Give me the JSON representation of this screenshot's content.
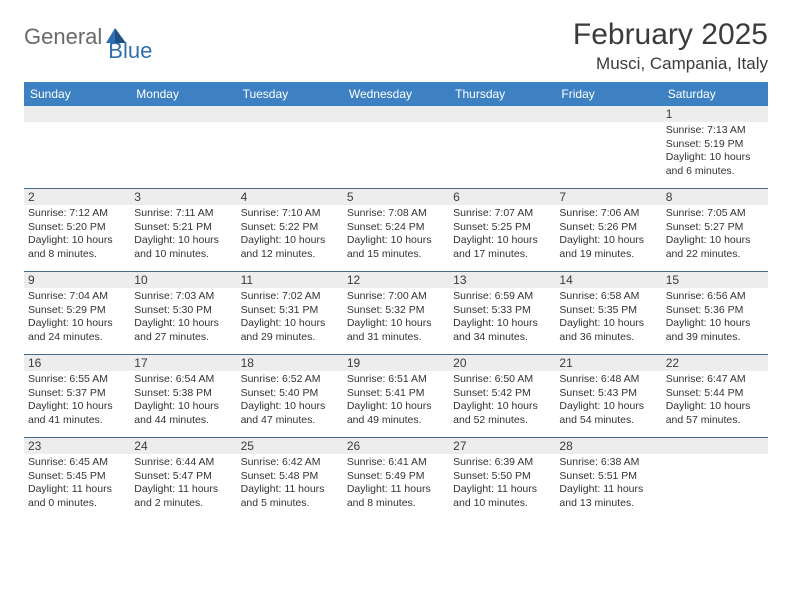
{
  "logo": {
    "part1": "General",
    "part2": "Blue"
  },
  "title": "February 2025",
  "location": "Musci, Campania, Italy",
  "header_bg": "#3d81c3",
  "rule_color": "#4a6a8a",
  "shade_bg": "#ededed",
  "text_color": "#333333",
  "weekdays": [
    "Sunday",
    "Monday",
    "Tuesday",
    "Wednesday",
    "Thursday",
    "Friday",
    "Saturday"
  ],
  "weeks": [
    {
      "nums": [
        "",
        "",
        "",
        "",
        "",
        "",
        "1"
      ],
      "cells": [
        null,
        null,
        null,
        null,
        null,
        null,
        {
          "sunrise": "Sunrise: 7:13 AM",
          "sunset": "Sunset: 5:19 PM",
          "day1": "Daylight: 10 hours",
          "day2": "and 6 minutes."
        }
      ]
    },
    {
      "nums": [
        "2",
        "3",
        "4",
        "5",
        "6",
        "7",
        "8"
      ],
      "cells": [
        {
          "sunrise": "Sunrise: 7:12 AM",
          "sunset": "Sunset: 5:20 PM",
          "day1": "Daylight: 10 hours",
          "day2": "and 8 minutes."
        },
        {
          "sunrise": "Sunrise: 7:11 AM",
          "sunset": "Sunset: 5:21 PM",
          "day1": "Daylight: 10 hours",
          "day2": "and 10 minutes."
        },
        {
          "sunrise": "Sunrise: 7:10 AM",
          "sunset": "Sunset: 5:22 PM",
          "day1": "Daylight: 10 hours",
          "day2": "and 12 minutes."
        },
        {
          "sunrise": "Sunrise: 7:08 AM",
          "sunset": "Sunset: 5:24 PM",
          "day1": "Daylight: 10 hours",
          "day2": "and 15 minutes."
        },
        {
          "sunrise": "Sunrise: 7:07 AM",
          "sunset": "Sunset: 5:25 PM",
          "day1": "Daylight: 10 hours",
          "day2": "and 17 minutes."
        },
        {
          "sunrise": "Sunrise: 7:06 AM",
          "sunset": "Sunset: 5:26 PM",
          "day1": "Daylight: 10 hours",
          "day2": "and 19 minutes."
        },
        {
          "sunrise": "Sunrise: 7:05 AM",
          "sunset": "Sunset: 5:27 PM",
          "day1": "Daylight: 10 hours",
          "day2": "and 22 minutes."
        }
      ]
    },
    {
      "nums": [
        "9",
        "10",
        "11",
        "12",
        "13",
        "14",
        "15"
      ],
      "cells": [
        {
          "sunrise": "Sunrise: 7:04 AM",
          "sunset": "Sunset: 5:29 PM",
          "day1": "Daylight: 10 hours",
          "day2": "and 24 minutes."
        },
        {
          "sunrise": "Sunrise: 7:03 AM",
          "sunset": "Sunset: 5:30 PM",
          "day1": "Daylight: 10 hours",
          "day2": "and 27 minutes."
        },
        {
          "sunrise": "Sunrise: 7:02 AM",
          "sunset": "Sunset: 5:31 PM",
          "day1": "Daylight: 10 hours",
          "day2": "and 29 minutes."
        },
        {
          "sunrise": "Sunrise: 7:00 AM",
          "sunset": "Sunset: 5:32 PM",
          "day1": "Daylight: 10 hours",
          "day2": "and 31 minutes."
        },
        {
          "sunrise": "Sunrise: 6:59 AM",
          "sunset": "Sunset: 5:33 PM",
          "day1": "Daylight: 10 hours",
          "day2": "and 34 minutes."
        },
        {
          "sunrise": "Sunrise: 6:58 AM",
          "sunset": "Sunset: 5:35 PM",
          "day1": "Daylight: 10 hours",
          "day2": "and 36 minutes."
        },
        {
          "sunrise": "Sunrise: 6:56 AM",
          "sunset": "Sunset: 5:36 PM",
          "day1": "Daylight: 10 hours",
          "day2": "and 39 minutes."
        }
      ]
    },
    {
      "nums": [
        "16",
        "17",
        "18",
        "19",
        "20",
        "21",
        "22"
      ],
      "cells": [
        {
          "sunrise": "Sunrise: 6:55 AM",
          "sunset": "Sunset: 5:37 PM",
          "day1": "Daylight: 10 hours",
          "day2": "and 41 minutes."
        },
        {
          "sunrise": "Sunrise: 6:54 AM",
          "sunset": "Sunset: 5:38 PM",
          "day1": "Daylight: 10 hours",
          "day2": "and 44 minutes."
        },
        {
          "sunrise": "Sunrise: 6:52 AM",
          "sunset": "Sunset: 5:40 PM",
          "day1": "Daylight: 10 hours",
          "day2": "and 47 minutes."
        },
        {
          "sunrise": "Sunrise: 6:51 AM",
          "sunset": "Sunset: 5:41 PM",
          "day1": "Daylight: 10 hours",
          "day2": "and 49 minutes."
        },
        {
          "sunrise": "Sunrise: 6:50 AM",
          "sunset": "Sunset: 5:42 PM",
          "day1": "Daylight: 10 hours",
          "day2": "and 52 minutes."
        },
        {
          "sunrise": "Sunrise: 6:48 AM",
          "sunset": "Sunset: 5:43 PM",
          "day1": "Daylight: 10 hours",
          "day2": "and 54 minutes."
        },
        {
          "sunrise": "Sunrise: 6:47 AM",
          "sunset": "Sunset: 5:44 PM",
          "day1": "Daylight: 10 hours",
          "day2": "and 57 minutes."
        }
      ]
    },
    {
      "nums": [
        "23",
        "24",
        "25",
        "26",
        "27",
        "28",
        ""
      ],
      "cells": [
        {
          "sunrise": "Sunrise: 6:45 AM",
          "sunset": "Sunset: 5:45 PM",
          "day1": "Daylight: 11 hours",
          "day2": "and 0 minutes."
        },
        {
          "sunrise": "Sunrise: 6:44 AM",
          "sunset": "Sunset: 5:47 PM",
          "day1": "Daylight: 11 hours",
          "day2": "and 2 minutes."
        },
        {
          "sunrise": "Sunrise: 6:42 AM",
          "sunset": "Sunset: 5:48 PM",
          "day1": "Daylight: 11 hours",
          "day2": "and 5 minutes."
        },
        {
          "sunrise": "Sunrise: 6:41 AM",
          "sunset": "Sunset: 5:49 PM",
          "day1": "Daylight: 11 hours",
          "day2": "and 8 minutes."
        },
        {
          "sunrise": "Sunrise: 6:39 AM",
          "sunset": "Sunset: 5:50 PM",
          "day1": "Daylight: 11 hours",
          "day2": "and 10 minutes."
        },
        {
          "sunrise": "Sunrise: 6:38 AM",
          "sunset": "Sunset: 5:51 PM",
          "day1": "Daylight: 11 hours",
          "day2": "and 13 minutes."
        },
        null
      ]
    }
  ]
}
